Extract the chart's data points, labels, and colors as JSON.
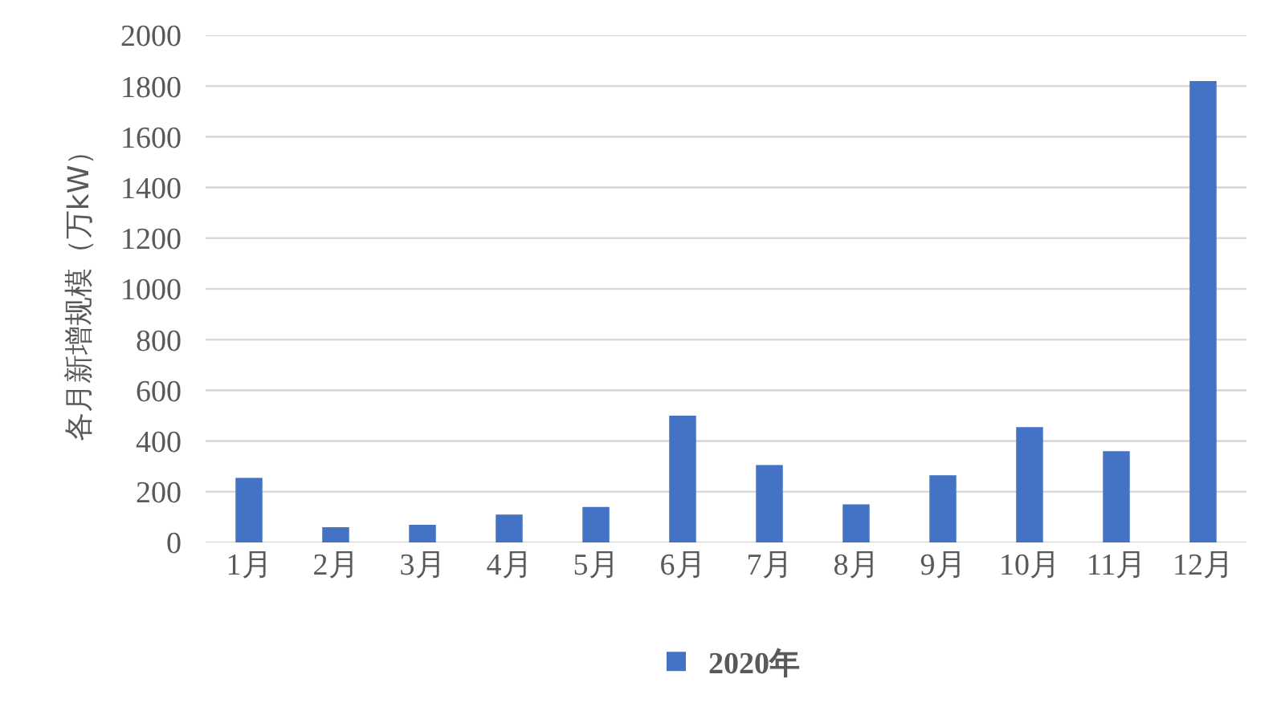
{
  "chart_data": {
    "type": "bar",
    "ylabel": "各月新增规模（万kW）",
    "categories": [
      "1月",
      "2月",
      "3月",
      "4月",
      "5月",
      "6月",
      "7月",
      "8月",
      "9月",
      "10月",
      "11月",
      "12月"
    ],
    "series": [
      {
        "name": "2020年",
        "color": "#4472c4",
        "values": [
          255,
          60,
          70,
          110,
          140,
          500,
          305,
          150,
          265,
          455,
          360,
          1820
        ]
      }
    ],
    "ylim": [
      0,
      2000
    ],
    "yticks": [
      0,
      200,
      400,
      600,
      800,
      1000,
      1200,
      1400,
      1600,
      1800,
      2000
    ],
    "grid": "y",
    "legend": "bottom"
  }
}
